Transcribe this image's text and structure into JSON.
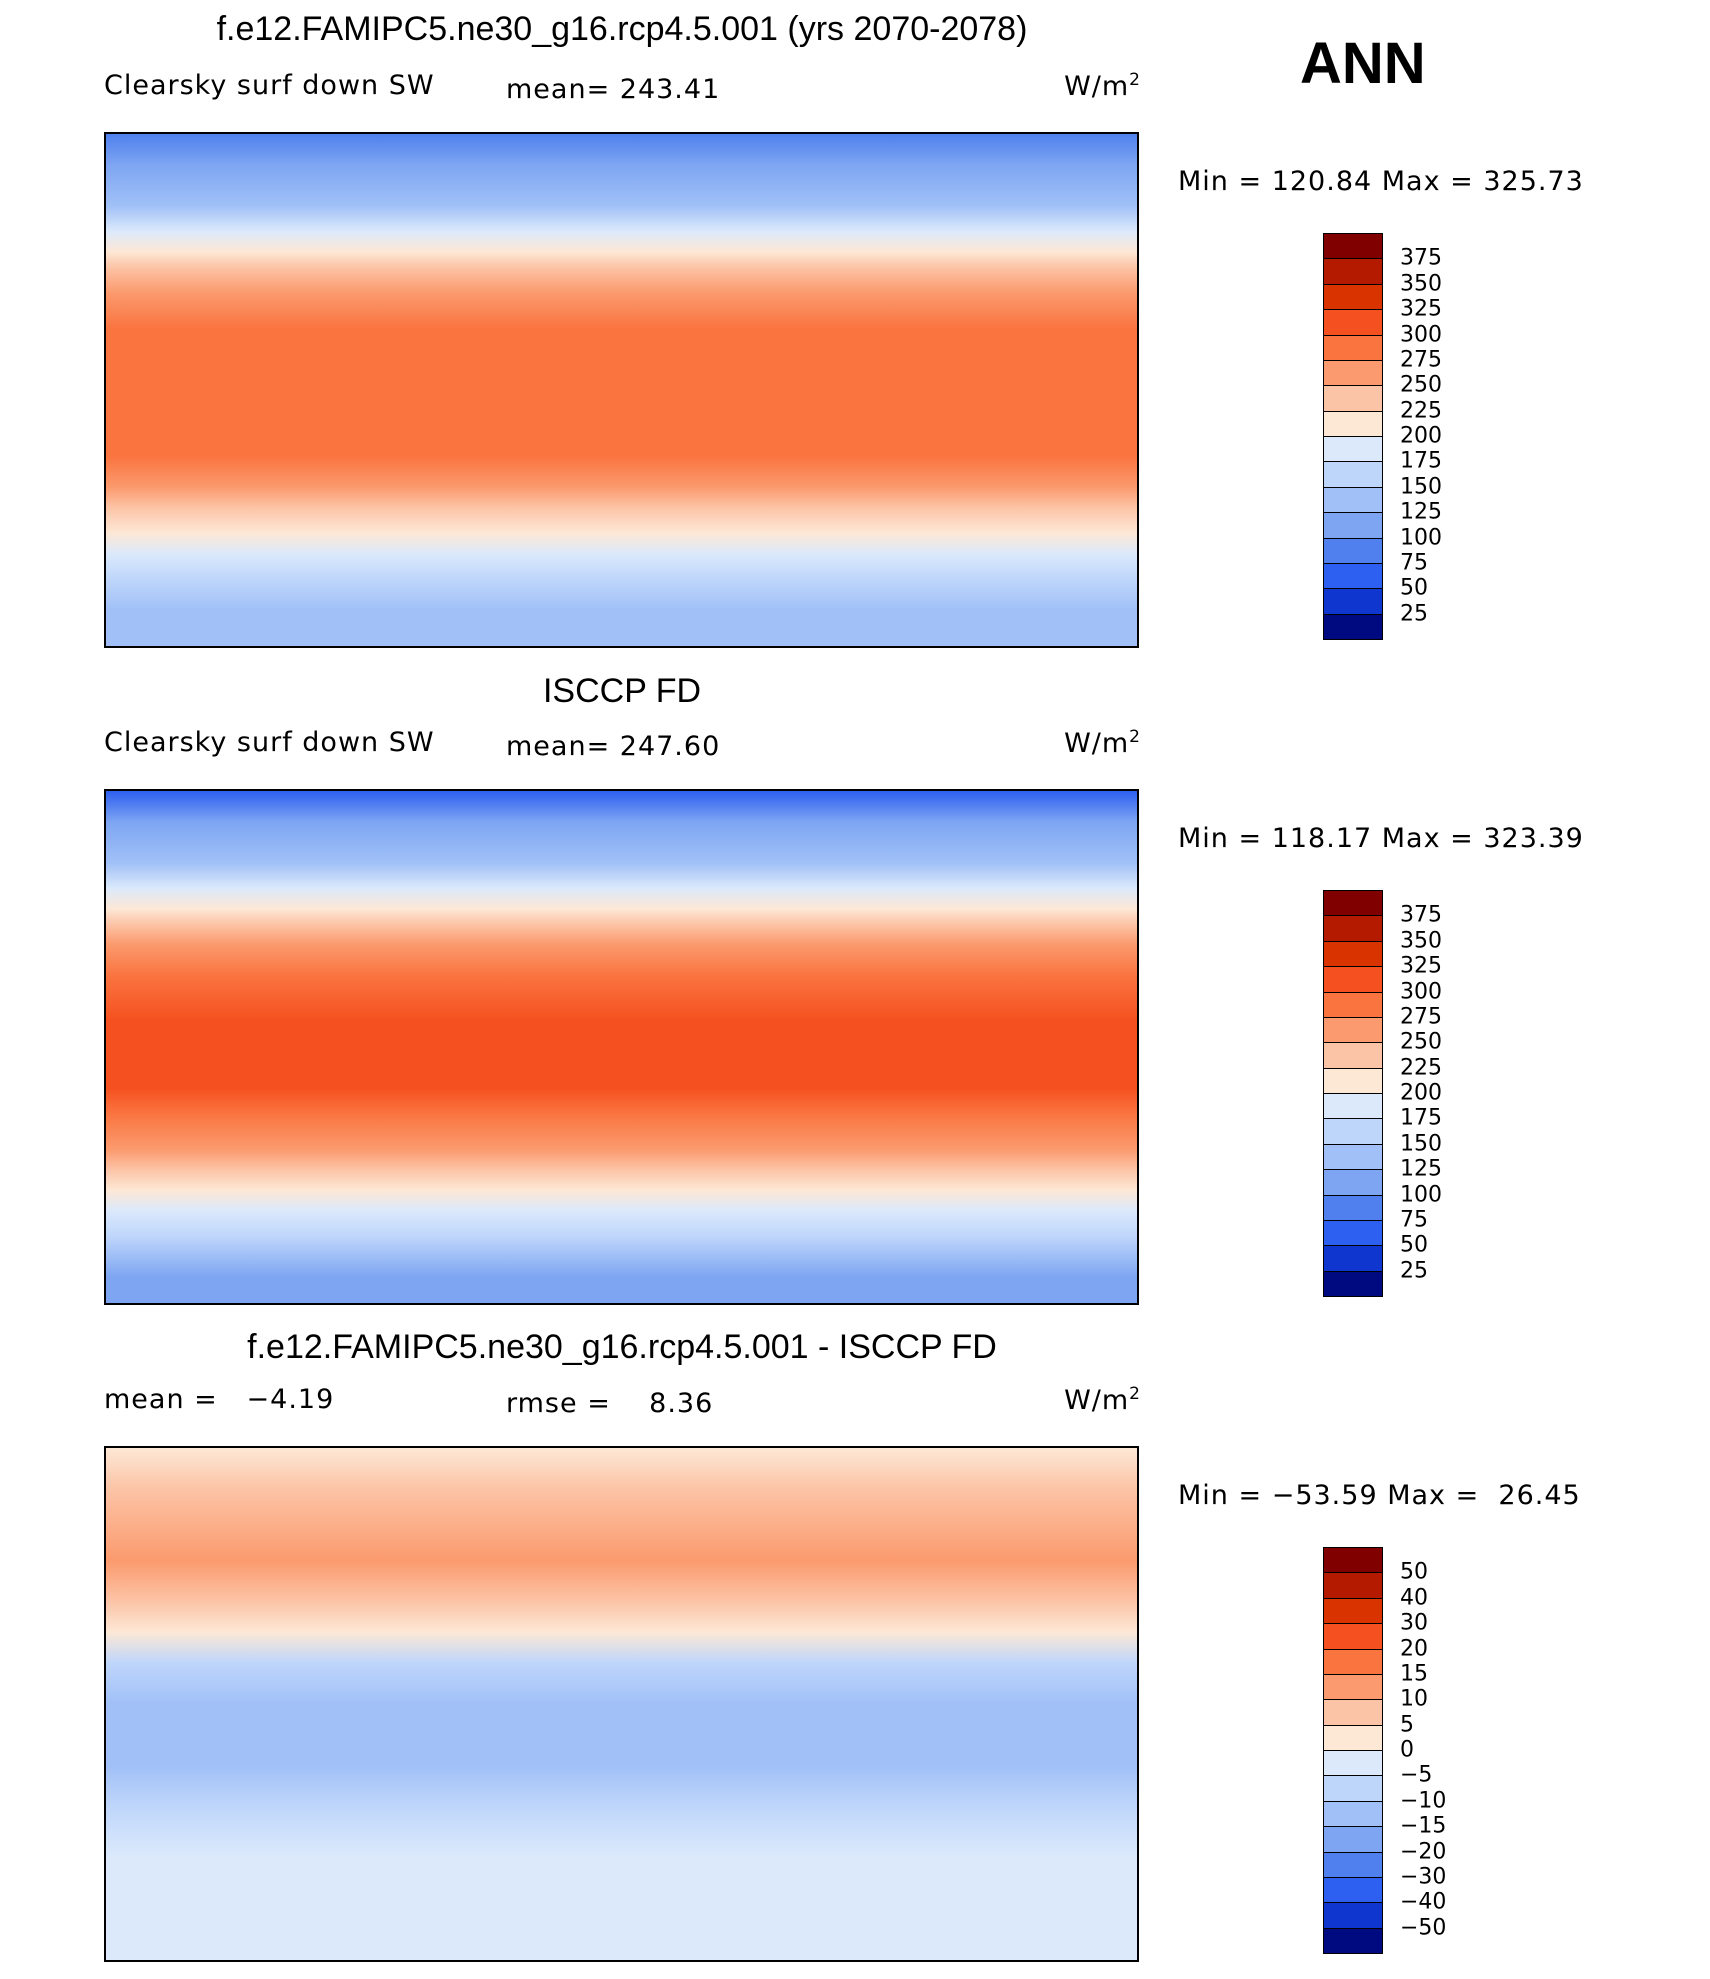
{
  "header": {
    "season": "ANN"
  },
  "panels": [
    {
      "title": "f.e12.FAMIPC5.ne30_g16.rcp4.5.001 (yrs 2070-2078)",
      "left": "Clearsky surf down SW",
      "middle": "mean= 243.41",
      "units": "W/m",
      "units_sup": "2",
      "range": "Min = 120.84 Max = 325.73",
      "colorbar": {
        "labels": [
          "375",
          "350",
          "325",
          "300",
          "275",
          "250",
          "225",
          "200",
          "175",
          "150",
          "125",
          "100",
          "75",
          "50",
          "25"
        ],
        "colors": [
          "#800000",
          "#b31a00",
          "#d93300",
          "#f5501f",
          "#fa7440",
          "#fb9a6e",
          "#fcc4a6",
          "#fde8d6",
          "#dbe9fb",
          "#bfd6fb",
          "#a0c0f7",
          "#7da5f2",
          "#4f80ee",
          "#2d5ff0",
          "#1036d0",
          "#000a80"
        ]
      }
    },
    {
      "title": "ISCCP FD",
      "left": "Clearsky surf down SW",
      "middle": "mean= 247.60",
      "units": "W/m",
      "units_sup": "2",
      "range": "Min = 118.17 Max = 323.39",
      "colorbar": {
        "labels": [
          "375",
          "350",
          "325",
          "300",
          "275",
          "250",
          "225",
          "200",
          "175",
          "150",
          "125",
          "100",
          "75",
          "50",
          "25"
        ],
        "colors": [
          "#800000",
          "#b31a00",
          "#d93300",
          "#f5501f",
          "#fa7440",
          "#fb9a6e",
          "#fcc4a6",
          "#fde8d6",
          "#dbe9fb",
          "#bfd6fb",
          "#a0c0f7",
          "#7da5f2",
          "#4f80ee",
          "#2d5ff0",
          "#1036d0",
          "#000a80"
        ]
      }
    },
    {
      "title": "f.e12.FAMIPC5.ne30_g16.rcp4.5.001 - ISCCP FD",
      "left": "mean =   −4.19",
      "middle": "rmse =    8.36",
      "units": "W/m",
      "units_sup": "2",
      "range": "Min = −53.59 Max =  26.45",
      "colorbar": {
        "labels": [
          "50",
          "40",
          "30",
          "20",
          "15",
          "10",
          "5",
          "0",
          "−5",
          "−10",
          "−15",
          "−20",
          "−30",
          "−40",
          "−50"
        ],
        "colors": [
          "#800000",
          "#b31a00",
          "#d93300",
          "#f5501f",
          "#fa7440",
          "#fb9a6e",
          "#fcc4a6",
          "#fde8d6",
          "#dbe9fb",
          "#bfd6fb",
          "#a0c0f7",
          "#7da5f2",
          "#4f80ee",
          "#2d5ff0",
          "#1036d0",
          "#000a80"
        ]
      }
    }
  ]
}
